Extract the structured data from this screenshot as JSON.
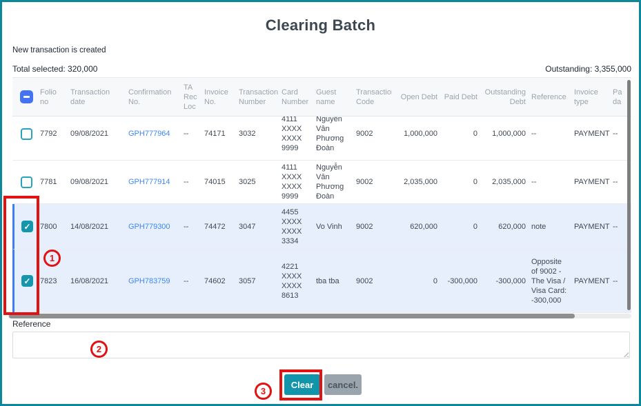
{
  "modal": {
    "title": "Clearing Batch",
    "message": "New transaction is created",
    "total_selected": "Total selected: 320,000",
    "outstanding": "Outstanding: 3,355,000"
  },
  "table": {
    "columns": [
      {
        "key": "folio",
        "label": "Folio no"
      },
      {
        "key": "date",
        "label": "Transaction date"
      },
      {
        "key": "confirmation",
        "label": "Confirmation No."
      },
      {
        "key": "ta_rec_loc",
        "label": "TA Rec Loc"
      },
      {
        "key": "invoice_no",
        "label": "Invoice No."
      },
      {
        "key": "transaction_number",
        "label": "Transaction Number"
      },
      {
        "key": "card_number",
        "label": "Card Number"
      },
      {
        "key": "guest_name",
        "label": "Guest name"
      },
      {
        "key": "transaction_code",
        "label": "Transaction Code"
      },
      {
        "key": "open_debt",
        "label": "Open Debt",
        "align": "right"
      },
      {
        "key": "paid_debt",
        "label": "Paid Debt",
        "align": "right"
      },
      {
        "key": "outstanding_debt",
        "label": "Outstanding Debt",
        "align": "right"
      },
      {
        "key": "reference",
        "label": "Reference"
      },
      {
        "key": "invoice_type",
        "label": "Invoice type"
      },
      {
        "key": "payment",
        "label": "Pa da"
      }
    ],
    "rows": [
      {
        "checked": false,
        "selected": false,
        "folio": "7792",
        "date": "09/08/2021",
        "confirmation": "GPH777964",
        "ta_rec_loc": "--",
        "invoice_no": "74171",
        "transaction_number": "3032",
        "card_number": "4111 XXXX XXXX 9999",
        "guest_name": "Nguyễn Vân Phương Đoàn",
        "transaction_code": "9002",
        "open_debt": "1,000,000",
        "paid_debt": "0",
        "outstanding_debt": "1,000,000",
        "reference": "--",
        "invoice_type": "PAYMENT",
        "payment": "--"
      },
      {
        "checked": false,
        "selected": false,
        "folio": "7781",
        "date": "09/08/2021",
        "confirmation": "GPH777914",
        "ta_rec_loc": "--",
        "invoice_no": "74015",
        "transaction_number": "3025",
        "card_number": "4111 XXXX XXXX 9999",
        "guest_name": "Nguyễn Vân Phương Đoàn",
        "transaction_code": "9002",
        "open_debt": "2,035,000",
        "paid_debt": "0",
        "outstanding_debt": "2,035,000",
        "reference": "--",
        "invoice_type": "PAYMENT",
        "payment": "--"
      },
      {
        "checked": true,
        "selected": true,
        "folio": "7800",
        "date": "14/08/2021",
        "confirmation": "GPH779300",
        "ta_rec_loc": "--",
        "invoice_no": "74472",
        "transaction_number": "3047",
        "card_number": "4455 XXXX XXXX 3334",
        "guest_name": "Vo Vinh",
        "transaction_code": "9002",
        "open_debt": "620,000",
        "paid_debt": "0",
        "outstanding_debt": "620,000",
        "reference": "note",
        "invoice_type": "PAYMENT",
        "payment": "--"
      },
      {
        "checked": true,
        "selected": true,
        "folio": "7823",
        "date": "16/08/2021",
        "confirmation": "GPH783759",
        "ta_rec_loc": "--",
        "invoice_no": "74602",
        "transaction_number": "3057",
        "card_number": "4221 XXXX XXXX 8613",
        "guest_name": "tba tba",
        "transaction_code": "9002",
        "open_debt": "0",
        "paid_debt": "-300,000",
        "outstanding_debt": "-300,000",
        "reference": "Opposite of 9002 - The Visa / Visa Card: -300,000",
        "invoice_type": "PAYMENT",
        "payment": "--"
      }
    ]
  },
  "reference": {
    "label": "Reference",
    "value": ""
  },
  "actions": {
    "clear": "Clear",
    "cancel": "cancel."
  },
  "annotations": {
    "step1": "1",
    "step2": "2",
    "step3": "3"
  },
  "colors": {
    "window_border": "#0d8799",
    "clear_button": "#1295ab",
    "cancel_button": "#9aa4ac",
    "annotation_red": "#e01212",
    "link_blue": "#3d87f5",
    "selected_row_bg": "#e8effc",
    "select_all_checkbox": "#4373f2",
    "row_checkbox": "#1496ac"
  }
}
